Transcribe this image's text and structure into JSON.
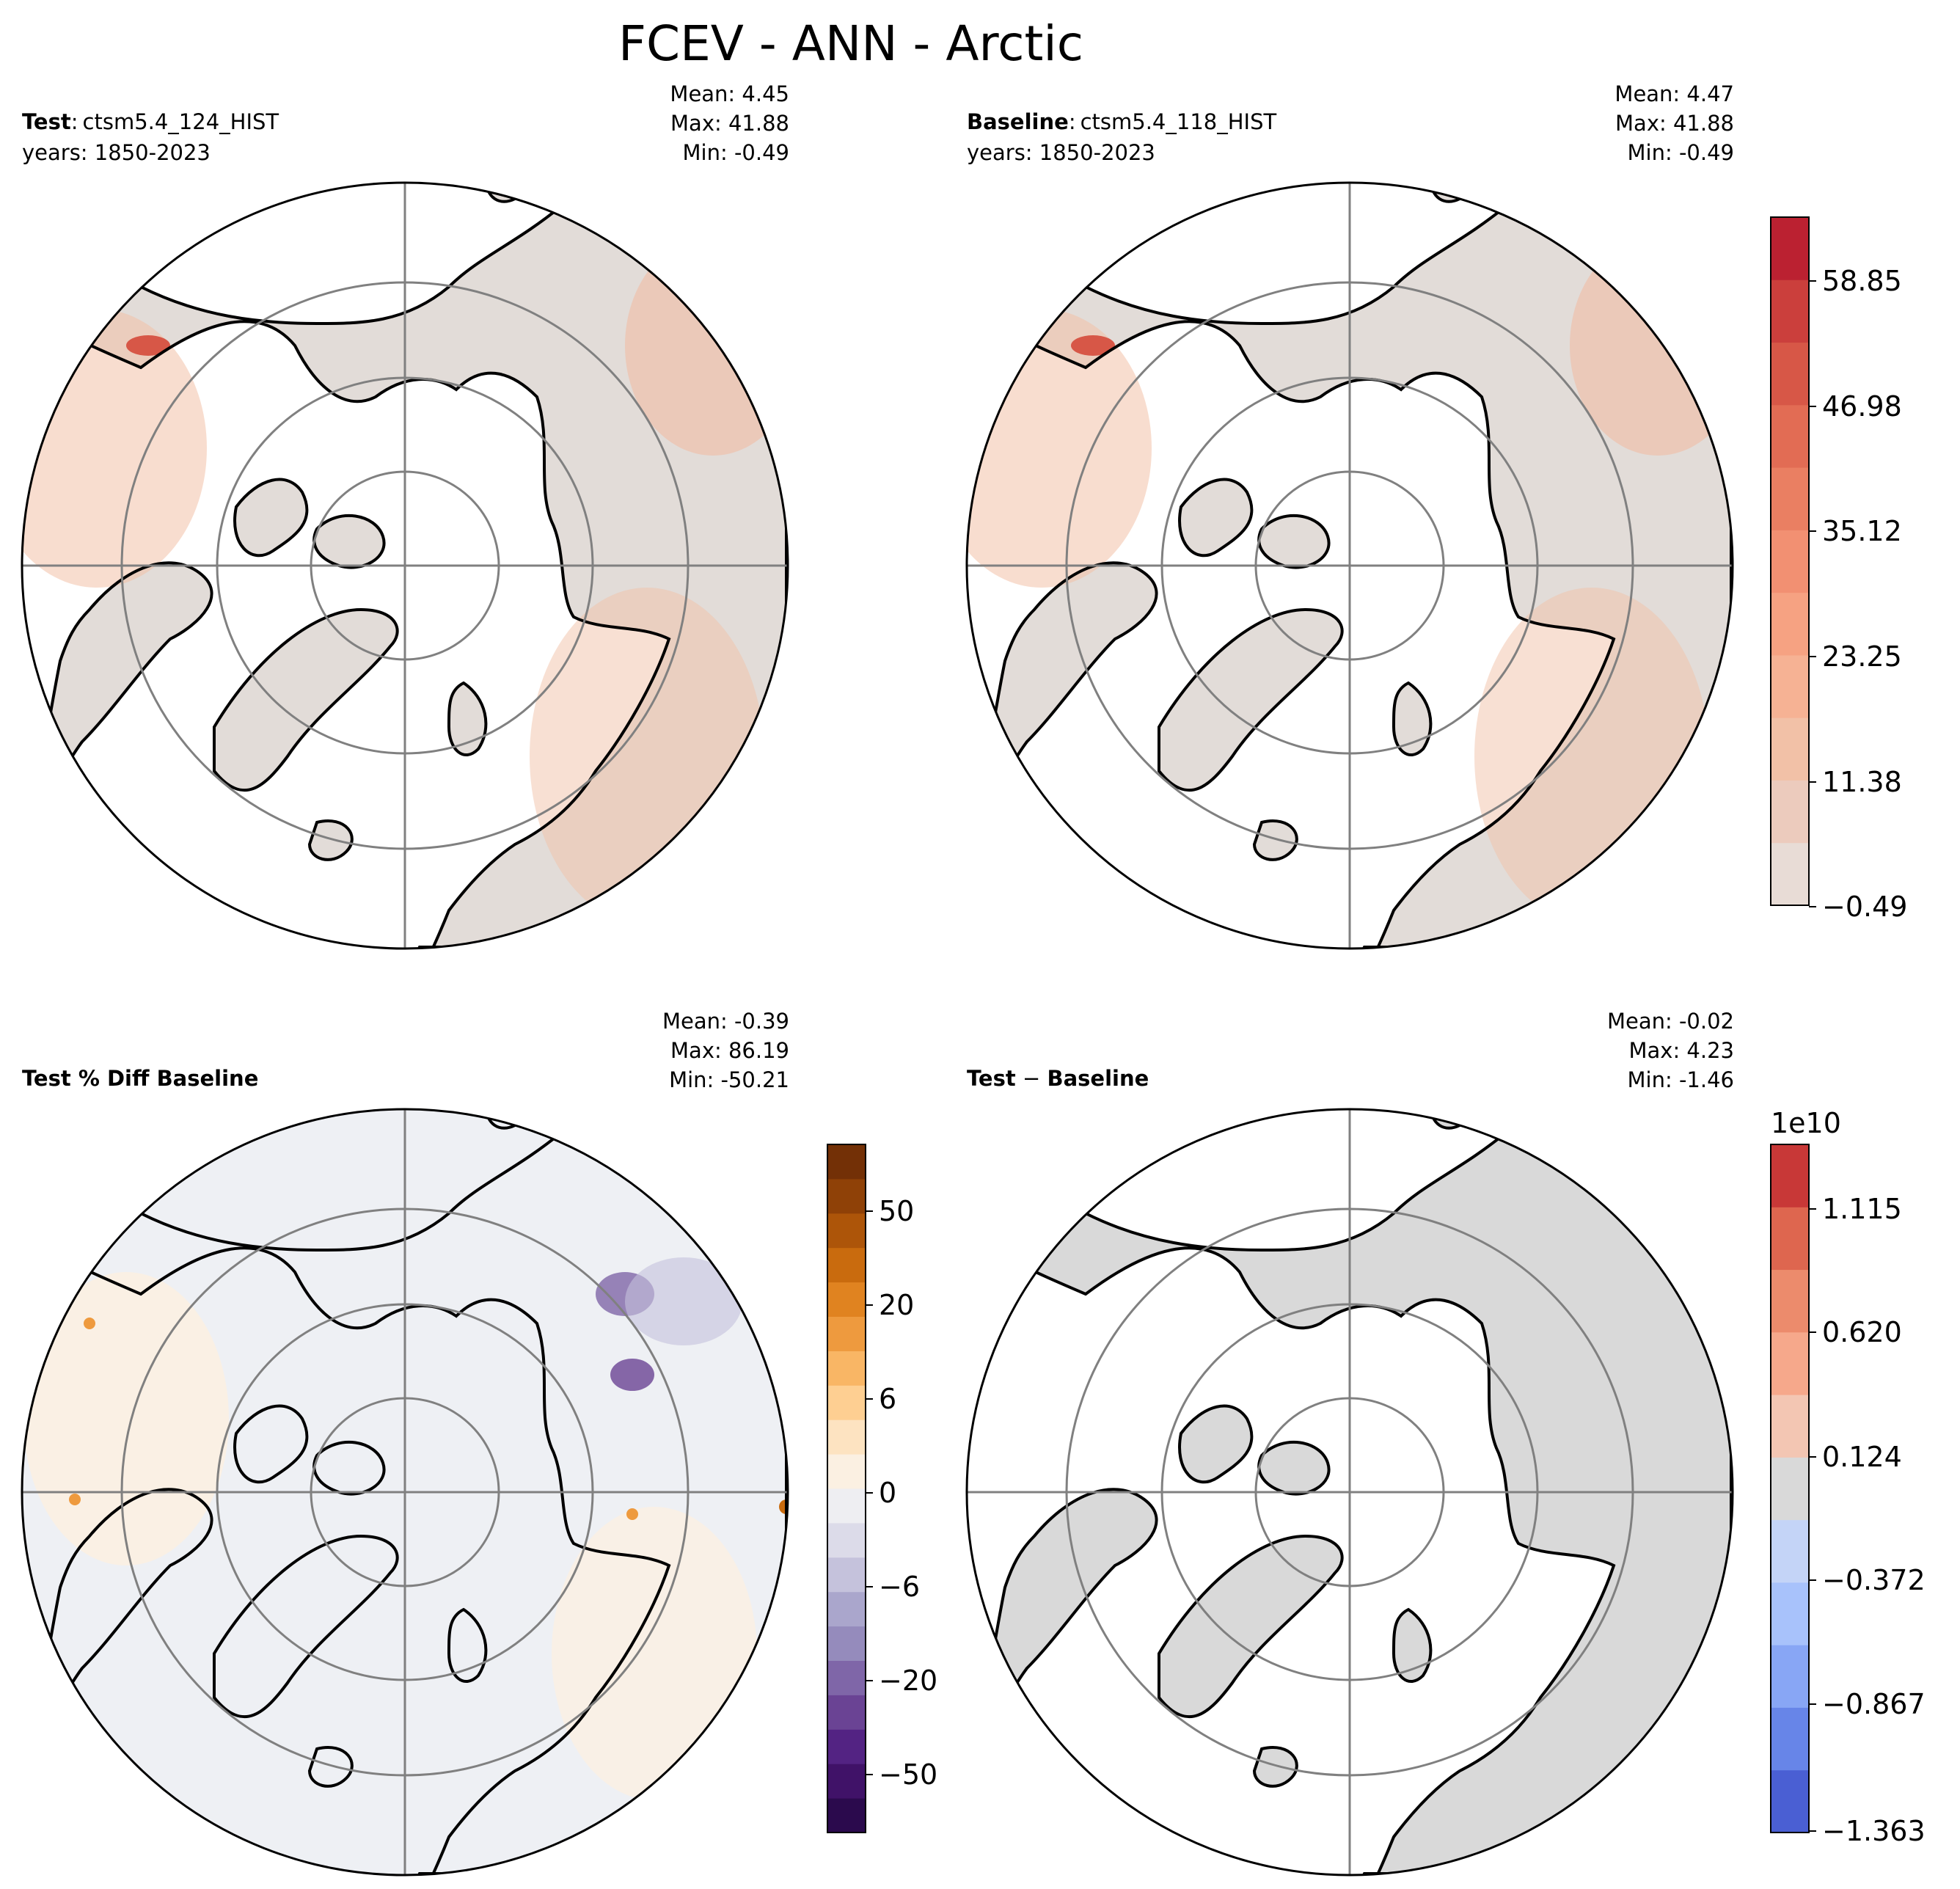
{
  "title": "FCEV - ANN - Arctic",
  "panels": {
    "test": {
      "label_bold": "Test",
      "label_sep": ":",
      "case": "ctsm5.4_124_HIST",
      "years": "years: 1850-2023",
      "mean": "Mean:  4.45",
      "max": "Max: 41.88",
      "min": "Min: -0.49"
    },
    "baseline": {
      "label_bold": "Baseline",
      "label_sep": ":",
      "case": "ctsm5.4_118_HIST",
      "years": "years: 1850-2023",
      "mean": "Mean:  4.47",
      "max": "Max: 41.88",
      "min": "Min: -0.49"
    },
    "pctdiff": {
      "label_bold": "Test % Diff Baseline",
      "mean": "Mean: -0.39",
      "max": "Max: 86.19",
      "min": "Min: -50.21"
    },
    "diff": {
      "label_bold": "Test",
      "label_sep": " − ",
      "label_bold2": "Baseline",
      "mean": "Mean: -0.02",
      "max": "Max:  4.23",
      "min": "Min: -1.46"
    }
  },
  "colorbars": {
    "abs": {
      "ticks": [
        "58.85",
        "46.98",
        "35.12",
        "23.25",
        "11.38",
        "−0.49"
      ],
      "colors": [
        "#e8dcd6",
        "#eccbbd",
        "#f2c1a7",
        "#f6b294",
        "#f6a282",
        "#f29072",
        "#ea7f62",
        "#e26c54",
        "#d75747",
        "#cb3f3c",
        "#bb2131"
      ]
    },
    "pct": {
      "ticks": [
        "50",
        "20",
        "6",
        "0",
        "−6",
        "−20",
        "−50"
      ],
      "colors": [
        "#2b0a4d",
        "#401268",
        "#532383",
        "#6a4394",
        "#7f66a8",
        "#958bbc",
        "#aaa6cc",
        "#c5c2dc",
        "#dcdbe9",
        "#eeeef2",
        "#fbf0e2",
        "#fde3c1",
        "#fecf92",
        "#f9b665",
        "#ee9a3e",
        "#e08320",
        "#c96b0e",
        "#ad5509",
        "#8f4107",
        "#733006"
      ]
    },
    "diff": {
      "exponent": "1e10",
      "ticks": [
        "1.115",
        "0.620",
        "0.124",
        "−0.372",
        "−0.867",
        "−1.363"
      ],
      "colors": [
        "#4a5fd3",
        "#6785e8",
        "#88a6f5",
        "#a8c2fb",
        "#c4d4f7",
        "#d9d9d9",
        "#f3c6b3",
        "#f6a88b",
        "#ec8b6c",
        "#de664f",
        "#c83837"
      ]
    }
  },
  "colors": {
    "land_abs": "#e2dcd8",
    "land_pct": "#eef0f4",
    "land_diff": "#d9d9d9",
    "ocean": "#ffffff",
    "gridline": "#808080",
    "coast": "#000000"
  }
}
